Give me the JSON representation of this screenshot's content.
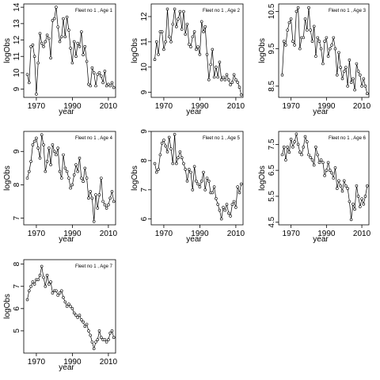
{
  "chart_data": [
    {
      "type": "scatter",
      "title": "Fleet no 1 , Age 1",
      "xlabel": "year",
      "ylabel": "logObs",
      "xlim": [
        1963,
        2014
      ],
      "ylim": [
        8.5,
        14.2
      ],
      "xticks": [
        1970,
        1990,
        2010
      ],
      "yticks": [
        9,
        10,
        11,
        12,
        13,
        14
      ],
      "x": [
        1965,
        1966,
        1967,
        1968,
        1969,
        1970,
        1971,
        1972,
        1973,
        1974,
        1975,
        1976,
        1977,
        1978,
        1979,
        1980,
        1981,
        1982,
        1983,
        1984,
        1985,
        1986,
        1987,
        1988,
        1989,
        1990,
        1991,
        1992,
        1993,
        1994,
        1995,
        1996,
        1997,
        1998,
        1999,
        2000,
        2001,
        2002,
        2003,
        2004,
        2005,
        2006,
        2007,
        2008,
        2009,
        2010,
        2011,
        2012,
        2013
      ],
      "y": [
        9.9,
        9.4,
        11.6,
        11.7,
        11.0,
        8.7,
        10.6,
        12.4,
        11.8,
        11.6,
        11.9,
        12.3,
        12.1,
        10.9,
        13.2,
        13.3,
        14.0,
        12.8,
        11.9,
        12.2,
        13.3,
        12.2,
        13.4,
        12.6,
        11.5,
        10.6,
        11.9,
        11.0,
        11.8,
        11.6,
        12.5,
        11.1,
        11.6,
        10.7,
        9.3,
        9.2,
        10.3,
        10.0,
        9.2,
        9.9,
        10.0,
        9.8,
        9.4,
        10.1,
        9.2,
        9.3,
        9.2,
        9.4,
        9.1
      ]
    },
    {
      "type": "scatter",
      "title": "Fleet no 1 , Age 2",
      "xlabel": "year",
      "ylabel": "logObs",
      "xlim": [
        1963,
        2014
      ],
      "ylim": [
        8.8,
        12.5
      ],
      "xticks": [
        1970,
        1990,
        2010
      ],
      "yticks": [
        9.0,
        10.0,
        11.0,
        12.0
      ],
      "x": [
        1965,
        1966,
        1967,
        1968,
        1969,
        1970,
        1971,
        1972,
        1973,
        1974,
        1975,
        1976,
        1977,
        1978,
        1979,
        1980,
        1981,
        1982,
        1983,
        1984,
        1985,
        1986,
        1987,
        1988,
        1989,
        1990,
        1991,
        1992,
        1993,
        1994,
        1995,
        1996,
        1997,
        1998,
        1999,
        2000,
        2001,
        2002,
        2003,
        2004,
        2005,
        2006,
        2007,
        2008,
        2009,
        2010,
        2011,
        2012,
        2013
      ],
      "y": [
        10.3,
        11.0,
        10.5,
        11.4,
        11.4,
        10.7,
        11.0,
        12.3,
        11.2,
        11.0,
        11.7,
        12.3,
        11.6,
        11.9,
        12.2,
        11.5,
        12.2,
        11.3,
        11.7,
        10.9,
        10.8,
        11.2,
        11.4,
        10.7,
        10.8,
        10.5,
        11.8,
        11.4,
        11.6,
        10.5,
        9.5,
        10.1,
        10.7,
        9.6,
        10.0,
        9.6,
        10.2,
        9.5,
        9.6,
        9.5,
        9.7,
        9.5,
        9.3,
        9.4,
        9.7,
        9.5,
        9.4,
        9.2,
        8.9
      ]
    },
    {
      "type": "scatter",
      "title": "Fleet no 1 , Age 3",
      "xlabel": "year",
      "ylabel": "logObs",
      "xlim": [
        1963,
        2014
      ],
      "ylim": [
        8.2,
        10.7
      ],
      "xticks": [
        1970,
        1990,
        2010
      ],
      "yticks": [
        8.5,
        9.5,
        10.5
      ],
      "x": [
        1965,
        1966,
        1967,
        1968,
        1969,
        1970,
        1971,
        1972,
        1973,
        1974,
        1975,
        1976,
        1977,
        1978,
        1979,
        1980,
        1981,
        1982,
        1983,
        1984,
        1985,
        1986,
        1987,
        1988,
        1989,
        1990,
        1991,
        1992,
        1993,
        1994,
        1995,
        1996,
        1997,
        1998,
        1999,
        2000,
        2001,
        2002,
        2003,
        2004,
        2005,
        2006,
        2007,
        2008,
        2009,
        2010,
        2011,
        2012,
        2013
      ],
      "y": [
        8.8,
        9.7,
        9.6,
        10.0,
        10.2,
        10.3,
        9.7,
        9.6,
        10.5,
        10.6,
        9.5,
        9.8,
        9.8,
        10.3,
        10.0,
        10.6,
        10.0,
        9.7,
        10.1,
        9.3,
        9.8,
        9.7,
        9.5,
        9.1,
        9.7,
        9.8,
        9.3,
        9.5,
        9.6,
        9.8,
        9.5,
        8.8,
        9.4,
        9.0,
        8.7,
        8.9,
        9.0,
        8.5,
        9.2,
        8.6,
        8.7,
        8.4,
        9.1,
        8.9,
        8.8,
        8.5,
        8.7,
        8.5,
        8.3
      ]
    },
    {
      "type": "scatter",
      "title": "Fleet no 1 , Age 4",
      "xlabel": "year",
      "ylabel": "logObs",
      "xlim": [
        1963,
        2014
      ],
      "ylim": [
        6.8,
        9.6
      ],
      "xticks": [
        1970,
        1990,
        2010
      ],
      "yticks": [
        7.0,
        8.0,
        9.0
      ],
      "x": [
        1965,
        1966,
        1967,
        1968,
        1969,
        1970,
        1971,
        1972,
        1973,
        1974,
        1975,
        1976,
        1977,
        1978,
        1979,
        1980,
        1981,
        1982,
        1983,
        1984,
        1985,
        1986,
        1987,
        1988,
        1989,
        1990,
        1991,
        1992,
        1993,
        1994,
        1995,
        1996,
        1997,
        1998,
        1999,
        2000,
        2001,
        2002,
        2003,
        2004,
        2005,
        2006,
        2007,
        2008,
        2009,
        2010,
        2011,
        2012,
        2013
      ],
      "y": [
        8.2,
        8.4,
        8.7,
        9.2,
        9.3,
        9.4,
        9.1,
        8.8,
        9.5,
        9.2,
        8.4,
        8.7,
        9.1,
        8.6,
        9.2,
        9.0,
        8.9,
        9.1,
        8.4,
        8.2,
        8.9,
        8.5,
        8.4,
        8.2,
        7.9,
        8.0,
        8.3,
        8.6,
        8.4,
        8.8,
        8.2,
        8.1,
        8.5,
        8.2,
        7.6,
        7.8,
        7.6,
        6.9,
        7.7,
        7.3,
        7.7,
        8.2,
        7.5,
        7.4,
        7.3,
        7.4,
        7.6,
        7.8,
        7.5
      ]
    },
    {
      "type": "scatter",
      "title": "Fleet no 1 , Age 5",
      "xlabel": "year",
      "ylabel": "logObs",
      "xlim": [
        1963,
        2014
      ],
      "ylim": [
        5.8,
        9.0
      ],
      "xticks": [
        1970,
        1990,
        2010
      ],
      "yticks": [
        6.0,
        7.0,
        8.0,
        9.0
      ],
      "x": [
        1965,
        1966,
        1967,
        1968,
        1969,
        1970,
        1971,
        1972,
        1973,
        1974,
        1975,
        1976,
        1977,
        1978,
        1979,
        1980,
        1981,
        1982,
        1983,
        1984,
        1985,
        1986,
        1987,
        1988,
        1989,
        1990,
        1991,
        1992,
        1993,
        1994,
        1995,
        1996,
        1997,
        1998,
        1999,
        2000,
        2001,
        2002,
        2003,
        2004,
        2005,
        2006,
        2007,
        2008,
        2009,
        2010,
        2011,
        2012,
        2013
      ],
      "y": [
        7.9,
        7.6,
        7.7,
        8.2,
        8.6,
        8.7,
        8.5,
        8.3,
        8.8,
        8.4,
        7.9,
        8.9,
        7.9,
        8.1,
        8.3,
        8.1,
        7.9,
        7.7,
        7.3,
        7.7,
        7.6,
        7.0,
        7.8,
        7.3,
        7.2,
        7.1,
        7.3,
        7.6,
        7.0,
        7.4,
        7.3,
        6.9,
        6.9,
        7.1,
        6.7,
        6.5,
        6.3,
        6.0,
        6.4,
        6.3,
        6.5,
        6.2,
        6.1,
        6.5,
        6.6,
        6.4,
        7.1,
        6.9,
        7.2
      ]
    },
    {
      "type": "scatter",
      "title": "Fleet no 1 , Age 6",
      "xlabel": "year",
      "ylabel": "logObs",
      "xlim": [
        1963,
        2014
      ],
      "ylim": [
        4.4,
        8.0
      ],
      "xticks": [
        1970,
        1990,
        2010
      ],
      "yticks": [
        4.5,
        5.5,
        6.5,
        7.5
      ],
      "x": [
        1965,
        1966,
        1967,
        1968,
        1969,
        1970,
        1971,
        1972,
        1973,
        1974,
        1975,
        1976,
        1977,
        1978,
        1979,
        1980,
        1981,
        1982,
        1983,
        1984,
        1985,
        1986,
        1987,
        1988,
        1989,
        1990,
        1991,
        1992,
        1993,
        1994,
        1995,
        1996,
        1997,
        1998,
        1999,
        2000,
        2001,
        2002,
        2003,
        2004,
        2005,
        2006,
        2007,
        2008,
        2009,
        2010,
        2011,
        2012,
        2013
      ],
      "y": [
        7.1,
        7.4,
        6.9,
        7.4,
        7.2,
        7.7,
        7.4,
        7.6,
        7.9,
        7.5,
        7.2,
        7.1,
        7.4,
        7.8,
        7.6,
        7.1,
        7.0,
        6.9,
        6.7,
        7.4,
        7.1,
        6.8,
        6.9,
        6.8,
        6.3,
        6.5,
        6.8,
        6.5,
        6.4,
        6.2,
        6.6,
        5.8,
        6.1,
        5.9,
        5.7,
        6.1,
        5.9,
        5.8,
        5.3,
        4.6,
        5.2,
        5.0,
        5.9,
        5.5,
        5.1,
        5.4,
        5.2,
        5.5,
        5.9
      ]
    },
    {
      "type": "scatter",
      "title": "Fleet no 1 , Age 7",
      "xlabel": "year",
      "ylabel": "logObs",
      "xlim": [
        1963,
        2014
      ],
      "ylim": [
        4.0,
        8.2
      ],
      "xticks": [
        1970,
        1990,
        2010
      ],
      "yticks": [
        5,
        6,
        7,
        8
      ],
      "x": [
        1965,
        1966,
        1967,
        1968,
        1969,
        1970,
        1971,
        1972,
        1973,
        1974,
        1975,
        1976,
        1977,
        1978,
        1979,
        1980,
        1981,
        1982,
        1983,
        1984,
        1985,
        1986,
        1987,
        1988,
        1989,
        1990,
        1991,
        1992,
        1993,
        1994,
        1995,
        1996,
        1997,
        1998,
        1999,
        2000,
        2001,
        2002,
        2003,
        2004,
        2005,
        2006,
        2007,
        2008,
        2009,
        2010,
        2011,
        2012,
        2013
      ],
      "y": [
        6.4,
        6.8,
        7.0,
        7.2,
        7.1,
        7.3,
        7.3,
        7.5,
        7.9,
        7.4,
        7.0,
        7.5,
        7.1,
        7.2,
        6.7,
        6.8,
        6.8,
        6.6,
        6.7,
        6.8,
        6.5,
        6.3,
        6.1,
        6.2,
        6.1,
        6.0,
        5.8,
        5.7,
        5.6,
        5.7,
        5.5,
        5.4,
        5.2,
        5.3,
        5.0,
        4.8,
        4.5,
        4.2,
        4.5,
        4.6,
        5.0,
        4.7,
        4.6,
        4.6,
        4.5,
        4.6,
        4.9,
        5.0,
        4.7
      ]
    }
  ]
}
